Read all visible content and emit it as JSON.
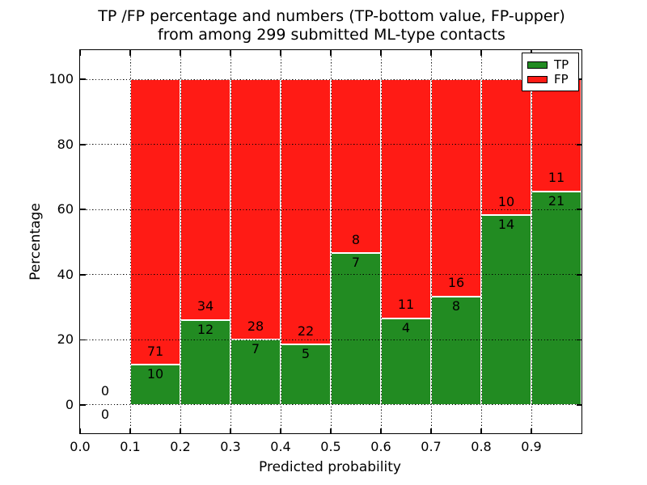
{
  "chart_data": {
    "type": "bar",
    "stacked": true,
    "normalized": "each bar totals 100%",
    "title_lines": [
      "TP /FP percentage and numbers (TP-bottom value, FP-upper)",
      "from among 299 submitted ML-type contacts"
    ],
    "xlabel": "Predicted probability",
    "ylabel": "Percentage",
    "xlim": [
      0.0,
      1.0
    ],
    "ylim": [
      -8.7,
      109.0
    ],
    "grid": true,
    "bin_edges": [
      0.0,
      0.1,
      0.2,
      0.3,
      0.4,
      0.5,
      0.6,
      0.7,
      0.8,
      0.9,
      1.0
    ],
    "series": [
      {
        "name": "TP",
        "color": "#228b22",
        "counts": [
          0,
          10,
          12,
          7,
          5,
          7,
          4,
          8,
          14,
          21
        ]
      },
      {
        "name": "FP",
        "color": "#ff1b15",
        "counts": [
          0,
          71,
          34,
          28,
          22,
          8,
          11,
          16,
          10,
          11
        ]
      }
    ],
    "tp_percent_per_bin": [
      null,
      12.3,
      26.1,
      20.0,
      18.5,
      46.7,
      26.7,
      33.3,
      58.3,
      65.6
    ],
    "total_contacts": 299,
    "x_tick_labels": [
      "0.0",
      "0.1",
      "0.2",
      "0.3",
      "0.4",
      "0.5",
      "0.6",
      "0.7",
      "0.8",
      "0.9"
    ],
    "y_tick_labels": [
      "0",
      "20",
      "40",
      "60",
      "80",
      "100"
    ],
    "y_tick_values": [
      0,
      20,
      40,
      60,
      80,
      100
    ],
    "legend": {
      "position": "upper right",
      "items": [
        "TP",
        "FP"
      ]
    },
    "colors": {
      "tp": "#228b22",
      "fp": "#ff1b15",
      "grid": "#000000",
      "background": "#ffffff"
    }
  }
}
